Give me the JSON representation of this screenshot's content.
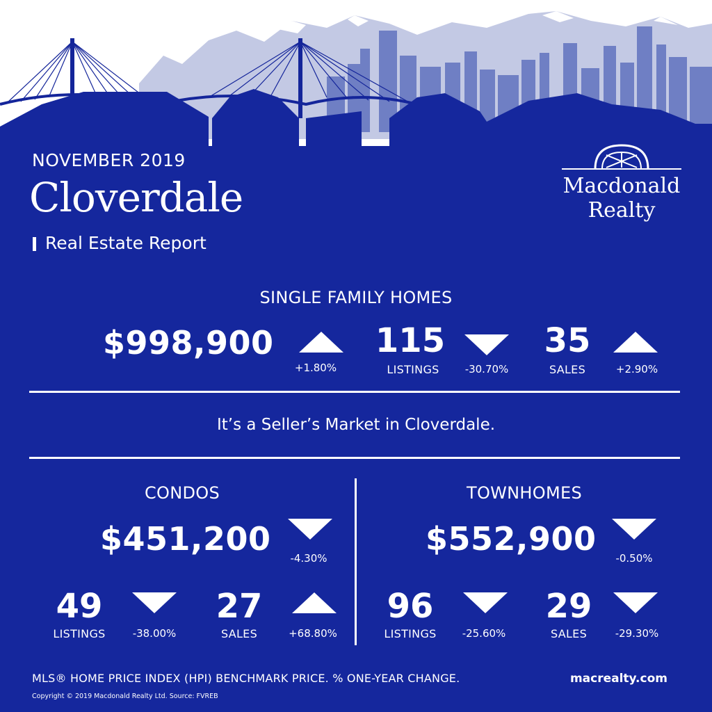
{
  "header": {
    "month": "NOVEMBER 2019",
    "city": "Cloverdale",
    "subtitle": "Real Estate Report"
  },
  "logo": {
    "line1": "Macdonald",
    "line2": "Realty",
    "icon": "archway-logo-icon"
  },
  "colors": {
    "panel": "#15279d",
    "mountains": "#c3c9e4",
    "city_buildings": "#6f7fc4",
    "bridges": "#14259a"
  },
  "single_family": {
    "heading": "SINGLE FAMILY HOMES",
    "price": "$998,900",
    "price_change": "+1.80%",
    "price_direction": "up",
    "listings": "115",
    "listings_label": "LISTINGS",
    "listings_change": "-30.70%",
    "listings_direction": "down",
    "sales": "35",
    "sales_label": "SALES",
    "sales_change": "+2.90%",
    "sales_direction": "up"
  },
  "tagline": "It’s a Seller’s Market in Cloverdale.",
  "condos": {
    "heading": "CONDOS",
    "price": "$451,200",
    "price_change": "-4.30%",
    "price_direction": "down",
    "listings": "49",
    "listings_label": "LISTINGS",
    "listings_change": "-38.00%",
    "listings_direction": "down",
    "sales": "27",
    "sales_label": "SALES",
    "sales_change": "+68.80%",
    "sales_direction": "up"
  },
  "townhomes": {
    "heading": "TOWNHOMES",
    "price": "$552,900",
    "price_change": "-0.50%",
    "price_direction": "down",
    "listings": "96",
    "listings_label": "LISTINGS",
    "listings_change": "-25.60%",
    "listings_direction": "down",
    "sales": "29",
    "sales_label": "SALES",
    "sales_change": "-29.30%",
    "sales_direction": "down"
  },
  "footer": {
    "note": "MLS® HOME PRICE INDEX (HPI) BENCHMARK PRICE.  % ONE-YEAR CHANGE.",
    "website": "macrealty.com",
    "copyright": "Copyright © 2019 Macdonald Realty Ltd.  Source: FVREB"
  }
}
